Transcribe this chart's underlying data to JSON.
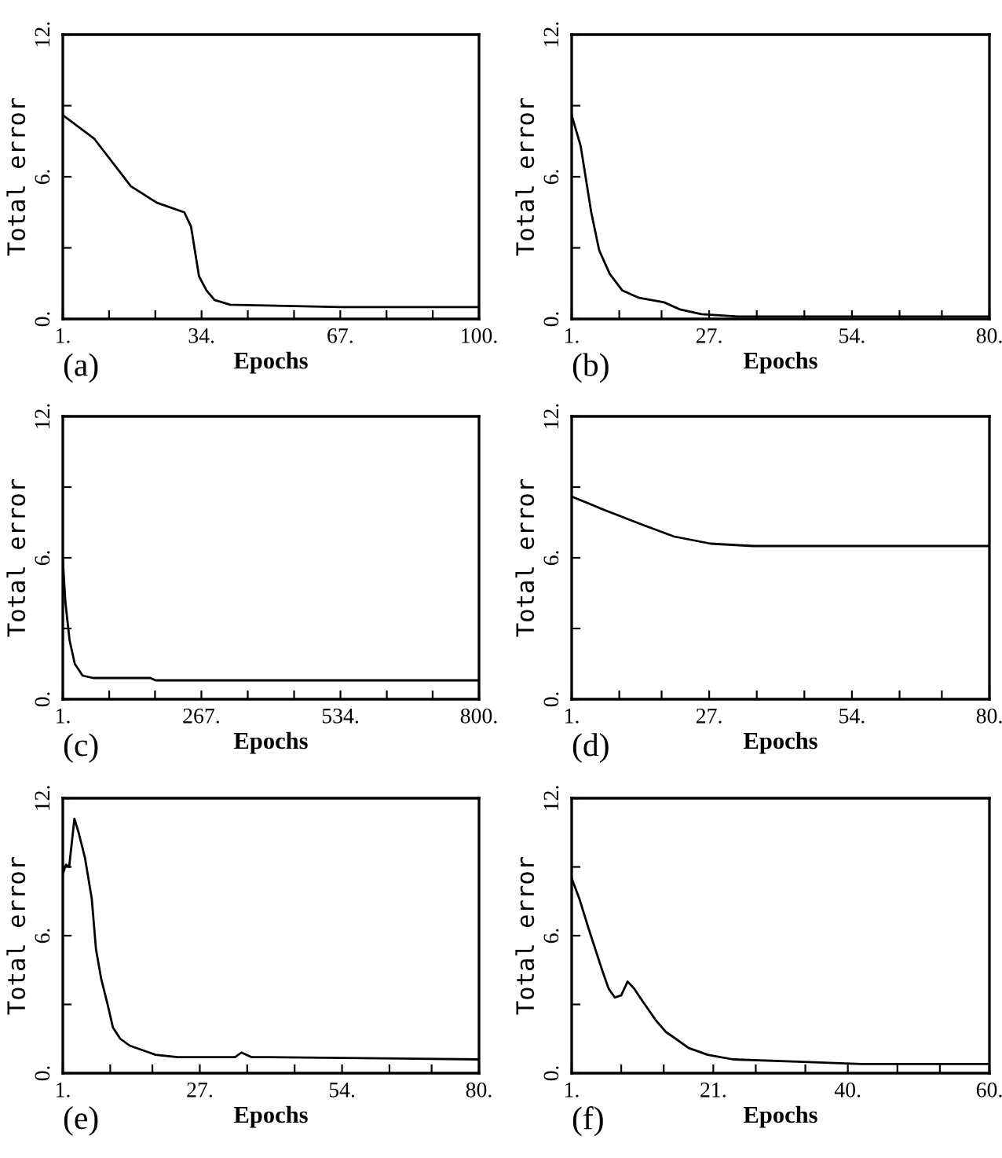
{
  "chart_data": [
    {
      "type": "line",
      "xlabel": "Epochs",
      "ylabel": "Total error",
      "annotations": [
        "(a)"
      ],
      "xlim": [
        1,
        100
      ],
      "ylim": [
        0,
        12
      ],
      "xticks": [
        {
          "value": 1,
          "label": "1."
        },
        {
          "value": 12,
          "label": null
        },
        {
          "value": 23,
          "label": null
        },
        {
          "value": 34,
          "label": "34."
        },
        {
          "value": 45,
          "label": null
        },
        {
          "value": 56,
          "label": null
        },
        {
          "value": 67,
          "label": "67."
        },
        {
          "value": 78,
          "label": null
        },
        {
          "value": 89,
          "label": null
        },
        {
          "value": 100,
          "label": "100."
        }
      ],
      "yticks": [
        {
          "value": 0,
          "label": "0."
        },
        {
          "value": 3,
          "label": null
        },
        {
          "value": 6,
          "label": "6."
        },
        {
          "value": 9,
          "label": null
        },
        {
          "value": 12,
          "label": "12."
        }
      ],
      "series": [
        {
          "color": "#000000",
          "x": [
            1,
            8.5,
            17.2,
            23.4,
            29.9,
            31.5,
            32.4,
            33.4,
            35.2,
            37.1,
            40.8,
            67,
            100
          ],
          "values": [
            8.6,
            7.6,
            5.6,
            4.9,
            4.5,
            3.9,
            2.9,
            1.8,
            1.2,
            0.8,
            0.6,
            0.5,
            0.5
          ]
        }
      ]
    },
    {
      "type": "line",
      "xlabel": "Epochs",
      "ylabel": "Total error",
      "annotations": [
        "(b)"
      ],
      "xlim": [
        1,
        80
      ],
      "ylim": [
        0,
        12
      ],
      "xticks": [
        {
          "value": 1,
          "label": "1."
        },
        {
          "value": 10,
          "label": null
        },
        {
          "value": 18,
          "label": null
        },
        {
          "value": 27,
          "label": "27."
        },
        {
          "value": 36,
          "label": null
        },
        {
          "value": 45,
          "label": null
        },
        {
          "value": 54,
          "label": "54."
        },
        {
          "value": 63,
          "label": null
        },
        {
          "value": 71,
          "label": null
        },
        {
          "value": 80,
          "label": "80."
        }
      ],
      "yticks": [
        {
          "value": 0,
          "label": "0."
        },
        {
          "value": 3,
          "label": null
        },
        {
          "value": 6,
          "label": "6."
        },
        {
          "value": 9,
          "label": null
        },
        {
          "value": 12,
          "label": "12."
        }
      ],
      "series": [
        {
          "color": "#000000",
          "x": [
            1,
            2.7,
            3.7,
            4.7,
            6.2,
            8.2,
            10.6,
            13.6,
            18.5,
            21.5,
            25.5,
            32.4,
            80
          ],
          "values": [
            8.6,
            7.3,
            5.9,
            4.5,
            2.9,
            1.9,
            1.2,
            0.9,
            0.7,
            0.4,
            0.2,
            0.1,
            0.1
          ]
        }
      ]
    },
    {
      "type": "line",
      "xlabel": "Epochs",
      "ylabel": "Total error",
      "annotations": [
        "(c)"
      ],
      "xlim": [
        1,
        800
      ],
      "ylim": [
        0,
        12
      ],
      "xticks": [
        {
          "value": 1,
          "label": "1."
        },
        {
          "value": 90,
          "label": null
        },
        {
          "value": 178,
          "label": null
        },
        {
          "value": 267,
          "label": "267."
        },
        {
          "value": 356,
          "label": null
        },
        {
          "value": 445,
          "label": null
        },
        {
          "value": 534,
          "label": "534."
        },
        {
          "value": 623,
          "label": null
        },
        {
          "value": 711,
          "label": null
        },
        {
          "value": 800,
          "label": "800."
        }
      ],
      "yticks": [
        {
          "value": 0,
          "label": "0."
        },
        {
          "value": 3,
          "label": null
        },
        {
          "value": 6,
          "label": "6."
        },
        {
          "value": 9,
          "label": null
        },
        {
          "value": 12,
          "label": "12."
        }
      ],
      "series": [
        {
          "color": "#000000",
          "x": [
            1,
            6,
            14,
            24,
            39,
            59,
            169,
            179,
            682,
            800
          ],
          "values": [
            5.9,
            4.1,
            2.5,
            1.5,
            1.0,
            0.9,
            0.9,
            0.8,
            0.8,
            0.8
          ]
        }
      ]
    },
    {
      "type": "line",
      "xlabel": "Epochs",
      "ylabel": "Total error",
      "annotations": [
        "(d)"
      ],
      "xlim": [
        1,
        80
      ],
      "ylim": [
        0,
        12
      ],
      "xticks": [
        {
          "value": 1,
          "label": "1."
        },
        {
          "value": 10,
          "label": null
        },
        {
          "value": 18,
          "label": null
        },
        {
          "value": 27,
          "label": "27."
        },
        {
          "value": 36,
          "label": null
        },
        {
          "value": 45,
          "label": null
        },
        {
          "value": 54,
          "label": "54."
        },
        {
          "value": 63,
          "label": null
        },
        {
          "value": 71,
          "label": null
        },
        {
          "value": 80,
          "label": "80."
        }
      ],
      "yticks": [
        {
          "value": 0,
          "label": "0."
        },
        {
          "value": 3,
          "label": null
        },
        {
          "value": 6,
          "label": "6."
        },
        {
          "value": 9,
          "label": null
        },
        {
          "value": 12,
          "label": "12."
        }
      ],
      "series": [
        {
          "color": "#000000",
          "x": [
            1,
            7.5,
            14.4,
            20.4,
            27.3,
            35.3,
            80
          ],
          "values": [
            8.6,
            8.0,
            7.4,
            6.9,
            6.6,
            6.5,
            6.5
          ]
        }
      ]
    },
    {
      "type": "line",
      "xlabel": "Epochs",
      "ylabel": "Total error",
      "annotations": [
        "(e)"
      ],
      "xlim": [
        1,
        80
      ],
      "ylim": [
        0,
        12
      ],
      "xticks": [
        {
          "value": 1,
          "label": "1."
        },
        {
          "value": 10,
          "label": null
        },
        {
          "value": 18,
          "label": null
        },
        {
          "value": 27,
          "label": "27."
        },
        {
          "value": 36,
          "label": null
        },
        {
          "value": 45,
          "label": null
        },
        {
          "value": 54,
          "label": "54."
        },
        {
          "value": 63,
          "label": null
        },
        {
          "value": 71,
          "label": null
        },
        {
          "value": 80,
          "label": "80."
        }
      ],
      "yticks": [
        {
          "value": 0,
          "label": "0."
        },
        {
          "value": 3,
          "label": null
        },
        {
          "value": 6,
          "label": "6."
        },
        {
          "value": 9,
          "label": null
        },
        {
          "value": 12,
          "label": "12."
        }
      ],
      "series": [
        {
          "color": "#000000",
          "x": [
            1,
            1.6,
            2.2,
            3.2,
            4,
            5.2,
            6.5,
            7.3,
            8.3,
            9.5,
            10.5,
            11.9,
            13.7,
            17.4,
            18.6,
            22.8,
            28.9,
            33.7,
            34.9,
            36.8,
            39.8,
            80
          ],
          "values": [
            8.7,
            9.1,
            9.0,
            11.1,
            10.5,
            9.4,
            7.6,
            5.4,
            4.1,
            3.0,
            2.0,
            1.5,
            1.2,
            0.9,
            0.8,
            0.7,
            0.7,
            0.7,
            0.9,
            0.7,
            0.7,
            0.6
          ]
        }
      ]
    },
    {
      "type": "line",
      "xlabel": "Epochs",
      "ylabel": "Total error",
      "annotations": [
        "(f)"
      ],
      "xlim": [
        1,
        60
      ],
      "ylim": [
        0,
        12
      ],
      "xticks": [
        {
          "value": 1,
          "label": "1."
        },
        {
          "value": 8,
          "label": null
        },
        {
          "value": 14,
          "label": null
        },
        {
          "value": 21,
          "label": "21."
        },
        {
          "value": 27,
          "label": null
        },
        {
          "value": 34,
          "label": null
        },
        {
          "value": 40,
          "label": "40."
        },
        {
          "value": 47,
          "label": null
        },
        {
          "value": 53,
          "label": null
        },
        {
          "value": 60,
          "label": "60."
        }
      ],
      "yticks": [
        {
          "value": 0,
          "label": "0."
        },
        {
          "value": 3,
          "label": null
        },
        {
          "value": 6,
          "label": "6."
        },
        {
          "value": 9,
          "label": null
        },
        {
          "value": 12,
          "label": "12."
        }
      ],
      "series": [
        {
          "color": "#000000",
          "x": [
            1,
            2.1,
            3.4,
            5.3,
            6.2,
            7.1,
            8.0,
            8.9,
            9.8,
            11.1,
            12.9,
            14.3,
            15.7,
            17.5,
            20.2,
            23.8,
            32.9,
            41.9,
            60
          ],
          "values": [
            8.5,
            7.6,
            6.3,
            4.5,
            3.7,
            3.3,
            3.4,
            4.0,
            3.7,
            3.1,
            2.3,
            1.8,
            1.5,
            1.1,
            0.8,
            0.6,
            0.5,
            0.4,
            0.4
          ]
        }
      ]
    }
  ]
}
